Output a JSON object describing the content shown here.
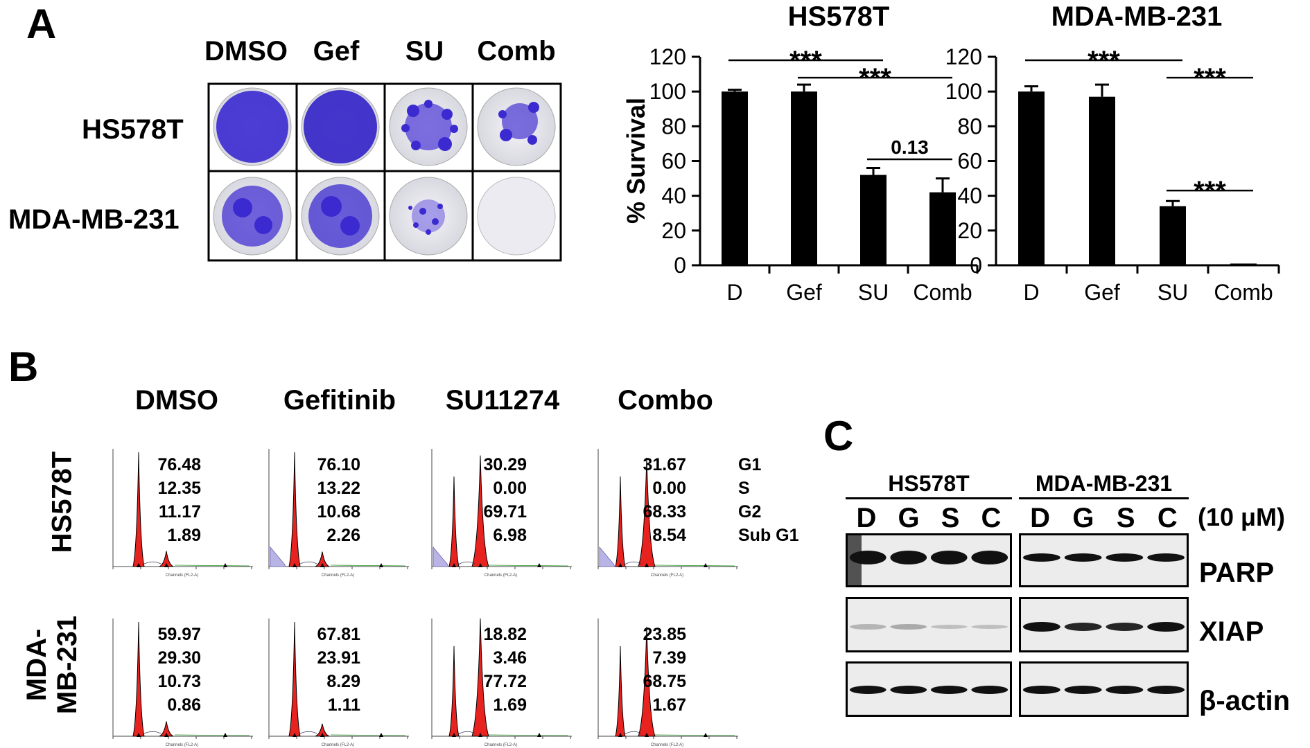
{
  "panel_a": {
    "letter": "A",
    "col_headers": [
      "DMSO",
      "Gef",
      "SU",
      "Comb"
    ],
    "row_labels": [
      "HS578T",
      "MDA-MB-231"
    ]
  },
  "chart_data": [
    {
      "type": "bar",
      "title": "HS578T",
      "categories": [
        "D",
        "Gef",
        "SU",
        "Comb"
      ],
      "values": [
        100,
        100,
        52,
        42
      ],
      "errors": [
        1,
        4,
        4,
        8
      ],
      "ylabel": "% Survival",
      "ylim": [
        0,
        120
      ],
      "yticks": [
        0,
        20,
        40,
        60,
        80,
        100,
        120
      ],
      "significance": [
        {
          "from": 0,
          "to": 2,
          "y": 118,
          "label": "***"
        },
        {
          "from": 1,
          "to": 3,
          "y": 108,
          "label": "***"
        },
        {
          "from": 2,
          "to": 3,
          "y": 61,
          "label": "0.13"
        }
      ]
    },
    {
      "type": "bar",
      "title": "MDA-MB-231",
      "categories": [
        "D",
        "Gef",
        "SU",
        "Comb"
      ],
      "values": [
        100,
        97,
        34,
        1
      ],
      "errors": [
        3,
        7,
        3,
        0
      ],
      "ylabel": "",
      "ylim": [
        0,
        120
      ],
      "yticks": [
        0,
        20,
        40,
        60,
        80,
        100,
        120
      ],
      "significance": [
        {
          "from": 0,
          "to": 2,
          "y": 118,
          "label": "***"
        },
        {
          "from": 2,
          "to": 3,
          "y": 108,
          "label": "***"
        },
        {
          "from": 2,
          "to": 3,
          "y": 43,
          "label": "***"
        }
      ]
    }
  ],
  "panel_b": {
    "letter": "B",
    "col_headers": [
      "DMSO",
      "Gefitinib",
      "SU11274",
      "Combo"
    ],
    "row_labels": [
      "HS578T",
      "MDA-MB-231"
    ],
    "row_label_lines": [
      [
        "HS578T"
      ],
      [
        "MDA-",
        "MB-231"
      ]
    ],
    "phases": [
      "G1",
      "S",
      "G2",
      "Sub G1"
    ],
    "histogram_axis_label": "Channels (FL2-A)",
    "values": [
      [
        [
          "76.48",
          "12.35",
          "11.17",
          "1.89"
        ],
        [
          "76.10",
          "13.22",
          "10.68",
          "2.26"
        ],
        [
          "30.29",
          "0.00",
          "69.71",
          "6.98"
        ],
        [
          "31.67",
          "0.00",
          "68.33",
          "8.54"
        ]
      ],
      [
        [
          "59.97",
          "29.30",
          "10.73",
          "0.86"
        ],
        [
          "67.81",
          "23.91",
          "8.29",
          "1.11"
        ],
        [
          "18.82",
          "3.46",
          "77.72",
          "1.69"
        ],
        [
          "23.85",
          "7.39",
          "68.75",
          "1.67"
        ]
      ]
    ]
  },
  "panel_c": {
    "letter": "C",
    "cell_lines": [
      "HS578T",
      "MDA-MB-231"
    ],
    "lanes": [
      "D",
      "G",
      "S",
      "C"
    ],
    "concentration": "(10 μM)",
    "proteins": [
      "PARP",
      "XIAP",
      "β-actin"
    ]
  },
  "colors": {
    "bar": "#000000",
    "peak": "#e8231f",
    "subg1": "#b8b4e6",
    "stain": "#3a2ad0"
  }
}
